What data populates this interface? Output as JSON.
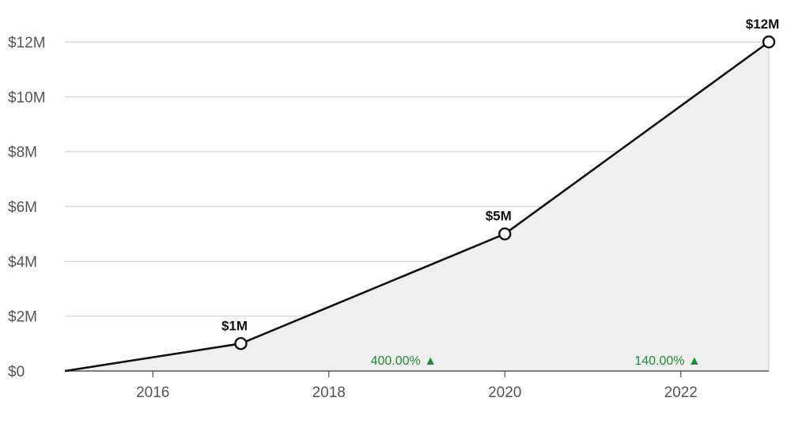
{
  "chart_data": {
    "type": "area",
    "title": "",
    "xlabel": "",
    "ylabel": "",
    "x": [
      2015,
      2017,
      2020,
      2023
    ],
    "series": [
      {
        "values": [
          0,
          1,
          5,
          12
        ]
      }
    ],
    "point_labels": [
      {
        "x": 2017,
        "text": "$1M"
      },
      {
        "x": 2020,
        "text": "$5M"
      },
      {
        "x": 2023,
        "text": "$12M"
      }
    ],
    "growth_annotations": [
      {
        "text": "400.00% ▲",
        "x": 2018.85
      },
      {
        "text": "140.00% ▲",
        "x": 2021.85
      }
    ],
    "xlim": [
      2015,
      2023
    ],
    "ylim": [
      0,
      12
    ],
    "xticks": [
      {
        "value": 2016,
        "label": "2016"
      },
      {
        "value": 2018,
        "label": "2018"
      },
      {
        "value": 2020,
        "label": "2020"
      },
      {
        "value": 2022,
        "label": "2022"
      }
    ],
    "yticks": [
      {
        "value": 0,
        "label": "$0"
      },
      {
        "value": 2,
        "label": "$2M"
      },
      {
        "value": 4,
        "label": "$4M"
      },
      {
        "value": 6,
        "label": "$6M"
      },
      {
        "value": 8,
        "label": "$8M"
      },
      {
        "value": 10,
        "label": "$10M"
      },
      {
        "value": 12,
        "label": "$12M"
      }
    ],
    "grid": true,
    "colors": {
      "line": "#111111",
      "fill": "#efefef",
      "grid": "#d9d9d9",
      "growth": "#1f8a3b",
      "marker_fill": "#ffffff"
    }
  }
}
